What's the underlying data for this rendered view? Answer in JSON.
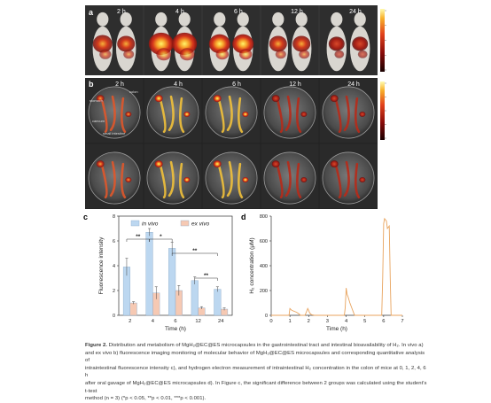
{
  "panel_a": {
    "letter": "a",
    "times": [
      "2 h",
      "4 h",
      "6 h",
      "12 h",
      "24 h"
    ],
    "colorbar_ticks": [
      "",
      "",
      "",
      "",
      ""
    ]
  },
  "panel_b": {
    "letter": "b",
    "times": [
      "2 h",
      "4 h",
      "6 h",
      "12 h",
      "24 h"
    ],
    "organ_labels": [
      "stomach",
      "colon",
      "caecum",
      "small intestine"
    ],
    "colorbar_ticks": [
      "",
      "",
      "",
      "",
      ""
    ]
  },
  "chart_data": [
    {
      "id": "c",
      "letter": "c",
      "type": "bar",
      "categories": [
        "2",
        "4",
        "6",
        "12",
        "24"
      ],
      "xlabel": "Time (h)",
      "ylabel": "Fluorescence intensity",
      "ylim": [
        0,
        8
      ],
      "yticks": [
        "0",
        "2",
        "4",
        "6",
        "8"
      ],
      "legend_position": "top",
      "series": [
        {
          "name": "in vivo",
          "values": [
            3.9,
            6.7,
            5.4,
            2.8,
            2.1
          ],
          "errors": [
            0.7,
            0.3,
            0.5,
            0.3,
            0.2
          ],
          "color": "#bcd7f0"
        },
        {
          "name": "ex vivo",
          "values": [
            1.0,
            1.8,
            2.0,
            0.6,
            0.5
          ],
          "errors": [
            0.1,
            0.5,
            0.4,
            0.1,
            0.1
          ],
          "color": "#f6c9b3"
        }
      ],
      "significance": [
        {
          "from": 0,
          "to": 1,
          "label": "**"
        },
        {
          "from": 1,
          "to": 2,
          "label": "*"
        },
        {
          "from": 2,
          "to": 4,
          "label": "**"
        },
        {
          "from": 3,
          "to": 4,
          "label": "**"
        }
      ]
    },
    {
      "id": "d",
      "letter": "d",
      "type": "line",
      "xlabel": "Time (h)",
      "ylabel": "H₂ concentration (μM)",
      "xlim": [
        0,
        7
      ],
      "ylim": [
        0,
        800
      ],
      "xticks": [
        "0",
        "1",
        "2",
        "3",
        "4",
        "5",
        "6",
        "7"
      ],
      "yticks": [
        "0",
        "200",
        "400",
        "600",
        "800"
      ],
      "color": "#e8a35d",
      "x": [
        0.0,
        0.95,
        1.0,
        1.1,
        1.35,
        1.5,
        1.55,
        1.7,
        1.8,
        1.9,
        1.95,
        2.0,
        2.05,
        2.15,
        2.3,
        3.0,
        3.9,
        3.95,
        4.0,
        4.05,
        4.1,
        4.2,
        4.3,
        4.4,
        4.45,
        4.5,
        5.9,
        5.95,
        6.0,
        6.05,
        6.15,
        6.2,
        6.3,
        6.35,
        6.4,
        7.0
      ],
      "y": [
        0,
        0,
        55,
        40,
        25,
        10,
        0,
        0,
        0,
        35,
        55,
        40,
        20,
        5,
        0,
        0,
        0,
        60,
        220,
        170,
        150,
        100,
        60,
        20,
        0,
        0,
        0,
        300,
        740,
        780,
        760,
        700,
        720,
        300,
        0,
        0
      ]
    }
  ],
  "caption": {
    "title": "Figure 2.",
    "lines": [
      " Distribution and metabolism of MgH₂@EC@ES microcapsules in the gastrointestinal tract and intestinal bioavailability of H₂. In vivo a)",
      "and ex vivo b) fluorescence imaging monitoring of molecular behavior of MgH₂@EC@ES microcapsules and corresponding quantitative analysis of",
      "intraintestinal fluorescence intensity c), and hydrogen electron measurement of intraintestinal H₂ concentration in the colon of mice at 0, 1, 2, 4, 6 h",
      "after oral gavage of MgH₂@EC@ES microcapsules d). In Figure c, the significant difference between 2 groups was calculated using the student's t-test",
      "method (n = 3) (*p < 0.05, **p < 0.01, ***p < 0.001)."
    ]
  }
}
